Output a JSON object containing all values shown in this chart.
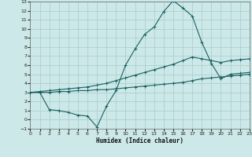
{
  "xlabel": "Humidex (Indice chaleur)",
  "background_color": "#cce8e8",
  "grid_color": "#a8cccc",
  "line_color": "#1a6060",
  "xlim": [
    0,
    23
  ],
  "ylim": [
    -1,
    13
  ],
  "xticks": [
    0,
    1,
    2,
    3,
    4,
    5,
    6,
    7,
    8,
    9,
    10,
    11,
    12,
    13,
    14,
    15,
    16,
    17,
    18,
    19,
    20,
    21,
    22,
    23
  ],
  "yticks": [
    -1,
    0,
    1,
    2,
    3,
    4,
    5,
    6,
    7,
    8,
    9,
    10,
    11,
    12,
    13
  ],
  "series": [
    {
      "x": [
        0,
        1,
        2,
        3,
        4,
        5,
        6,
        7,
        8,
        9,
        10,
        11,
        12,
        13,
        14,
        15,
        16,
        17,
        18,
        19,
        20,
        21,
        22,
        23
      ],
      "y": [
        3.0,
        3.0,
        1.1,
        1.0,
        0.8,
        0.5,
        0.4,
        -0.8,
        1.5,
        3.2,
        6.0,
        7.8,
        9.4,
        10.2,
        11.9,
        13.1,
        12.3,
        11.4,
        8.5,
        6.2,
        4.5,
        5.0,
        5.1,
        5.2
      ]
    },
    {
      "x": [
        0,
        1,
        2,
        3,
        4,
        5,
        6,
        7,
        8,
        9,
        10,
        11,
        12,
        13,
        14,
        15,
        16,
        17,
        18,
        19,
        20,
        21,
        22,
        23
      ],
      "y": [
        3.0,
        3.1,
        3.2,
        3.3,
        3.4,
        3.5,
        3.6,
        3.8,
        4.0,
        4.3,
        4.6,
        4.9,
        5.2,
        5.5,
        5.8,
        6.1,
        6.5,
        6.9,
        6.7,
        6.5,
        6.3,
        6.5,
        6.6,
        6.7
      ]
    },
    {
      "x": [
        0,
        1,
        2,
        3,
        4,
        5,
        6,
        7,
        8,
        9,
        10,
        11,
        12,
        13,
        14,
        15,
        16,
        17,
        18,
        19,
        20,
        21,
        22,
        23
      ],
      "y": [
        3.0,
        3.0,
        3.0,
        3.1,
        3.1,
        3.2,
        3.2,
        3.3,
        3.3,
        3.4,
        3.5,
        3.6,
        3.7,
        3.8,
        3.9,
        4.0,
        4.1,
        4.3,
        4.5,
        4.6,
        4.7,
        4.8,
        4.9,
        5.0
      ]
    }
  ]
}
